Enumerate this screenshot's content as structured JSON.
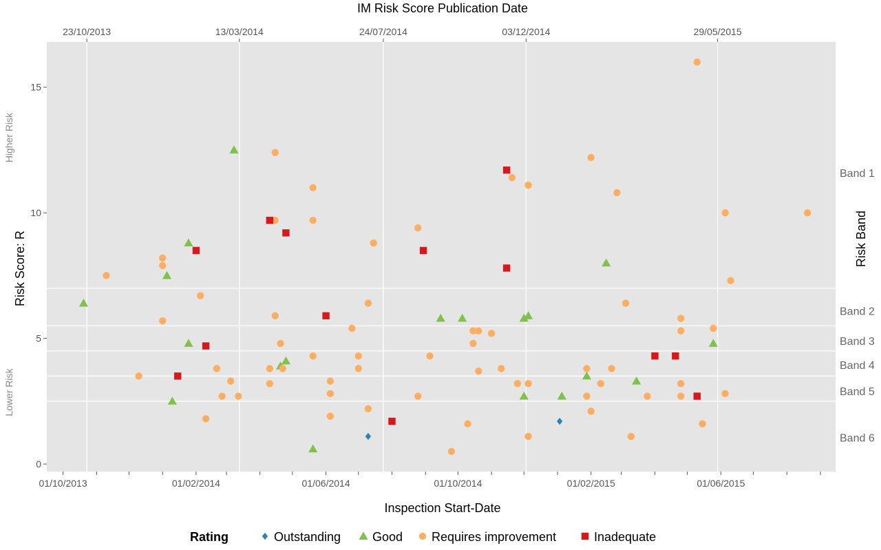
{
  "chart_data": {
    "type": "scatter",
    "title": "IM Risk Score Publication Date",
    "xlabel": "Inspection Start-Date",
    "ylabel": "Risk Score: R",
    "ylabel_high": "Higher Risk",
    "ylabel_low": "Lower Risk",
    "right_label": "Risk Band",
    "ylim": [
      -0.3,
      16.8
    ],
    "xlim": [
      "2013-09-16",
      "2015-09-15"
    ],
    "grid": true,
    "legend_position": "bottom",
    "legend_title": "Rating",
    "y_ticks": [
      "0",
      "5",
      "10",
      "15"
    ],
    "x_ticks": [
      {
        "date": "2013-10-01",
        "label": "01/10/2013"
      },
      {
        "date": "2014-02-01",
        "label": "01/02/2014"
      },
      {
        "date": "2014-06-01",
        "label": "01/06/2014"
      },
      {
        "date": "2014-10-01",
        "label": "01/10/2014"
      },
      {
        "date": "2015-02-01",
        "label": "01/02/2015"
      },
      {
        "date": "2015-06-01",
        "label": "01/06/2015"
      }
    ],
    "x_minor_ticks": [
      "2013-11-01",
      "2013-12-01",
      "2014-01-01",
      "2014-03-01",
      "2014-04-01",
      "2014-05-01",
      "2014-07-01",
      "2014-08-01",
      "2014-09-01",
      "2014-11-01",
      "2014-12-01",
      "2015-01-01",
      "2015-03-01",
      "2015-04-01",
      "2015-05-01",
      "2015-07-01",
      "2015-08-01",
      "2015-09-01"
    ],
    "publication_dates": [
      {
        "date": "2013-10-23",
        "label": "23/10/2013"
      },
      {
        "date": "2014-03-13",
        "label": "13/03/2014"
      },
      {
        "date": "2014-07-24",
        "label": "24/07/2014"
      },
      {
        "date": "2014-12-03",
        "label": "03/12/2014"
      },
      {
        "date": "2015-05-29",
        "label": "29/05/2015"
      }
    ],
    "band_boundaries": [
      7.0,
      5.5,
      4.5,
      3.5,
      2.5
    ],
    "bands": [
      {
        "label": "Band 1",
        "center": 11.6
      },
      {
        "label": "Band 2",
        "center": 6.1
      },
      {
        "label": "Band 3",
        "center": 4.9
      },
      {
        "label": "Band 4",
        "center": 3.95
      },
      {
        "label": "Band 5",
        "center": 2.9
      },
      {
        "label": "Band 6",
        "center": 1.05
      }
    ],
    "series": [
      {
        "name": "Outstanding",
        "color": "#2b83ba",
        "shape": "diamond",
        "points": [
          [
            "2014-07-10",
            1.1
          ],
          [
            "2015-01-03",
            1.7
          ]
        ]
      },
      {
        "name": "Good",
        "color": "#7fc24a",
        "shape": "triangle",
        "points": [
          [
            "2013-10-20",
            6.4
          ],
          [
            "2014-01-05",
            7.5
          ],
          [
            "2014-01-25",
            8.8
          ],
          [
            "2014-03-08",
            12.5
          ],
          [
            "2014-01-25",
            4.8
          ],
          [
            "2014-01-10",
            2.5
          ],
          [
            "2014-04-20",
            3.9
          ],
          [
            "2014-04-25",
            4.1
          ],
          [
            "2014-05-20",
            0.6
          ],
          [
            "2014-09-15",
            5.8
          ],
          [
            "2014-10-05",
            5.8
          ],
          [
            "2014-12-01",
            5.8
          ],
          [
            "2014-12-05",
            5.9
          ],
          [
            "2014-12-01",
            2.7
          ],
          [
            "2015-01-05",
            2.7
          ],
          [
            "2015-01-28",
            3.5
          ],
          [
            "2015-02-15",
            8.0
          ],
          [
            "2015-03-15",
            3.3
          ],
          [
            "2015-05-25",
            4.8
          ]
        ]
      },
      {
        "name": "Requires improvement",
        "color": "#fdae61",
        "shape": "circle",
        "points": [
          [
            "2013-11-10",
            7.5
          ],
          [
            "2013-12-10",
            3.5
          ],
          [
            "2014-01-01",
            8.2
          ],
          [
            "2014-01-01",
            7.9
          ],
          [
            "2014-01-01",
            5.7
          ],
          [
            "2014-01-15",
            3.5
          ],
          [
            "2014-02-05",
            6.7
          ],
          [
            "2014-02-10",
            1.8
          ],
          [
            "2014-02-20",
            3.8
          ],
          [
            "2014-02-25",
            2.7
          ],
          [
            "2014-03-05",
            3.3
          ],
          [
            "2014-03-12",
            2.7
          ],
          [
            "2014-04-15",
            12.4
          ],
          [
            "2014-04-15",
            9.7
          ],
          [
            "2014-04-15",
            5.9
          ],
          [
            "2014-04-20",
            4.8
          ],
          [
            "2014-04-10",
            3.8
          ],
          [
            "2014-04-10",
            3.2
          ],
          [
            "2014-04-22",
            3.8
          ],
          [
            "2014-05-20",
            11.0
          ],
          [
            "2014-05-20",
            9.7
          ],
          [
            "2014-05-20",
            4.3
          ],
          [
            "2014-06-05",
            3.3
          ],
          [
            "2014-06-05",
            2.8
          ],
          [
            "2014-06-05",
            1.9
          ],
          [
            "2014-06-25",
            5.4
          ],
          [
            "2014-07-01",
            4.3
          ],
          [
            "2014-07-01",
            3.8
          ],
          [
            "2014-07-10",
            6.4
          ],
          [
            "2014-07-10",
            2.2
          ],
          [
            "2014-07-15",
            8.8
          ],
          [
            "2014-08-25",
            9.4
          ],
          [
            "2014-08-25",
            2.7
          ],
          [
            "2014-09-05",
            4.3
          ],
          [
            "2014-09-25",
            0.5
          ],
          [
            "2014-10-15",
            5.3
          ],
          [
            "2014-10-20",
            5.3
          ],
          [
            "2014-10-15",
            4.8
          ],
          [
            "2014-10-20",
            3.7
          ],
          [
            "2014-10-10",
            1.6
          ],
          [
            "2014-11-01",
            5.2
          ],
          [
            "2014-11-10",
            3.8
          ],
          [
            "2014-11-20",
            11.4
          ],
          [
            "2014-12-05",
            11.1
          ],
          [
            "2014-11-25",
            3.2
          ],
          [
            "2014-12-05",
            3.2
          ],
          [
            "2014-12-05",
            1.1
          ],
          [
            "2015-02-01",
            12.2
          ],
          [
            "2015-01-28",
            3.8
          ],
          [
            "2015-01-28",
            2.7
          ],
          [
            "2015-02-01",
            2.1
          ],
          [
            "2015-02-10",
            3.2
          ],
          [
            "2015-02-20",
            3.8
          ],
          [
            "2015-02-25",
            10.8
          ],
          [
            "2015-03-05",
            6.4
          ],
          [
            "2015-03-25",
            2.7
          ],
          [
            "2015-03-10",
            1.1
          ],
          [
            "2015-04-25",
            5.8
          ],
          [
            "2015-04-25",
            5.3
          ],
          [
            "2015-04-25",
            3.2
          ],
          [
            "2015-04-25",
            2.7
          ],
          [
            "2015-05-10",
            16.0
          ],
          [
            "2015-05-15",
            1.6
          ],
          [
            "2015-05-25",
            5.4
          ],
          [
            "2015-06-05",
            10.0
          ],
          [
            "2015-06-10",
            7.3
          ],
          [
            "2015-06-05",
            2.8
          ],
          [
            "2015-08-20",
            10.0
          ]
        ]
      },
      {
        "name": "Inadequate",
        "color": "#d7191c",
        "shape": "square",
        "points": [
          [
            "2014-02-01",
            8.5
          ],
          [
            "2014-01-15",
            3.5
          ],
          [
            "2014-02-10",
            4.7
          ],
          [
            "2014-04-10",
            9.7
          ],
          [
            "2014-04-25",
            9.2
          ],
          [
            "2014-06-01",
            5.9
          ],
          [
            "2014-08-01",
            1.7
          ],
          [
            "2014-08-30",
            8.5
          ],
          [
            "2014-11-15",
            11.7
          ],
          [
            "2014-11-15",
            7.8
          ],
          [
            "2015-04-01",
            4.3
          ],
          [
            "2015-04-20",
            4.3
          ],
          [
            "2015-05-10",
            2.7
          ]
        ]
      }
    ]
  }
}
